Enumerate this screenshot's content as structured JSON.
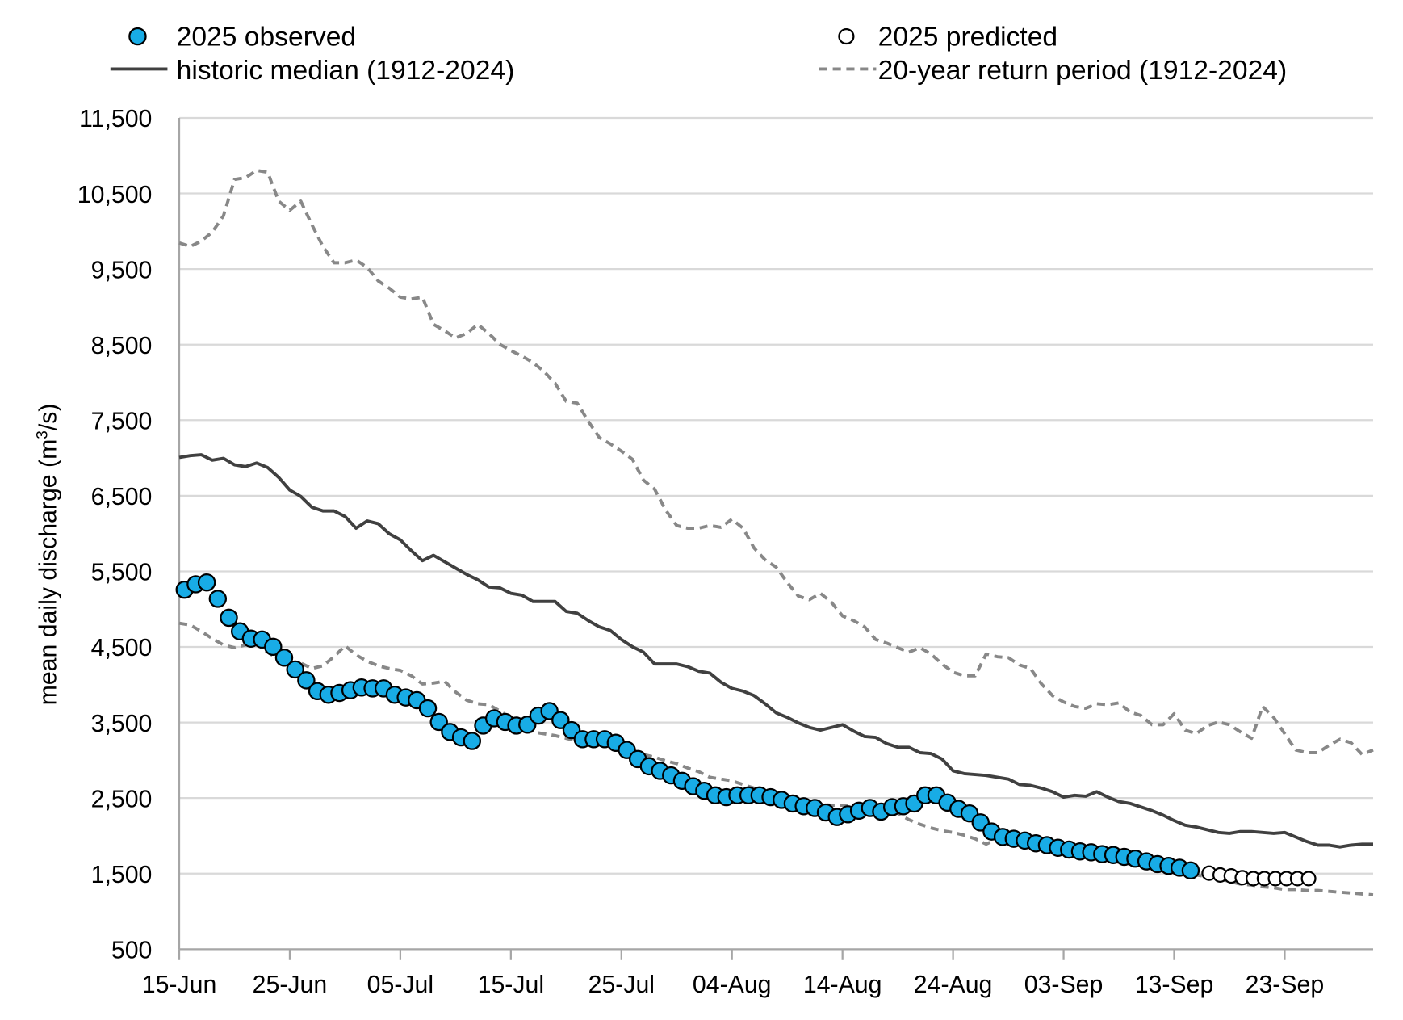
{
  "chart_data": {
    "type": "line",
    "title": "",
    "xlabel": "",
    "ylabel": "mean daily discharge (m³/s)",
    "ylabel_parts": {
      "pre": "mean daily discharge (m",
      "sup": "3",
      "post": "/s)"
    },
    "ylim": [
      500,
      11500
    ],
    "yticks": [
      500,
      1500,
      2500,
      3500,
      4500,
      5500,
      6500,
      7500,
      8500,
      9500,
      10500,
      11500
    ],
    "ytick_labels": [
      "500",
      "1,500",
      "2,500",
      "3,500",
      "4,500",
      "5,500",
      "6,500",
      "7,500",
      "8,500",
      "9,500",
      "10,500",
      "11,500"
    ],
    "x_range": [
      "15-Jun",
      "01-Oct"
    ],
    "xtick_labels": [
      "15-Jun",
      "25-Jun",
      "05-Jul",
      "15-Jul",
      "25-Jul",
      "04-Aug",
      "14-Aug",
      "24-Aug",
      "03-Sep",
      "13-Sep",
      "23-Sep"
    ],
    "grid": "horizontal",
    "legend_position": "top",
    "colors": {
      "observed": "#18ace6",
      "median": "#404040",
      "return_period": "#888888",
      "grid": "#d9d9d9",
      "axis": "#a6a6a6"
    },
    "series": [
      {
        "name": "2025 observed",
        "kind": "markers-filled",
        "start": "15-Jun",
        "values": [
          5257,
          5329,
          5353,
          5137,
          4886,
          4706,
          4610,
          4598,
          4502,
          4358,
          4202,
          4058,
          3915,
          3867,
          3891,
          3927,
          3963,
          3951,
          3951,
          3867,
          3831,
          3795,
          3687,
          3507,
          3375,
          3303,
          3255,
          3459,
          3555,
          3507,
          3459,
          3471,
          3591,
          3651,
          3531,
          3399,
          3279,
          3279,
          3279,
          3231,
          3136,
          3016,
          2920,
          2860,
          2800,
          2728,
          2656,
          2596,
          2536,
          2512,
          2536,
          2536,
          2536,
          2512,
          2476,
          2428,
          2392,
          2368,
          2309,
          2249,
          2285,
          2333,
          2368,
          2321,
          2380,
          2392,
          2428,
          2536,
          2536,
          2440,
          2357,
          2297,
          2177,
          2057,
          1985,
          1961,
          1937,
          1901,
          1877,
          1842,
          1818,
          1794,
          1782,
          1758,
          1746,
          1722,
          1698,
          1662,
          1626,
          1602,
          1578,
          1542
        ]
      },
      {
        "name": "2025 predicted",
        "kind": "markers-open",
        "start": "16-Sep",
        "values": [
          1506,
          1482,
          1470,
          1446,
          1434,
          1434,
          1434,
          1434,
          1434,
          1434
        ]
      },
      {
        "name": "historic median (1912-2024)",
        "kind": "solid-line",
        "start": "15-Jun",
        "values": [
          7006,
          7030,
          7042,
          6970,
          6994,
          6910,
          6886,
          6934,
          6874,
          6743,
          6575,
          6491,
          6347,
          6299,
          6299,
          6227,
          6071,
          6167,
          6131,
          5998,
          5916,
          5772,
          5640,
          5712,
          5628,
          5544,
          5460,
          5389,
          5293,
          5281,
          5209,
          5185,
          5101,
          5101,
          5101,
          4969,
          4945,
          4849,
          4766,
          4718,
          4598,
          4502,
          4430,
          4274,
          4274,
          4274,
          4238,
          4178,
          4154,
          4034,
          3951,
          3915,
          3855,
          3747,
          3627,
          3567,
          3495,
          3435,
          3399,
          3435,
          3471,
          3387,
          3315,
          3303,
          3220,
          3172,
          3172,
          3100,
          3088,
          3016,
          2860,
          2824,
          2812,
          2800,
          2776,
          2752,
          2680,
          2668,
          2632,
          2584,
          2512,
          2536,
          2524,
          2584,
          2512,
          2453,
          2429,
          2381,
          2333,
          2273,
          2201,
          2141,
          2117,
          2081,
          2045,
          2033,
          2057,
          2057,
          2045,
          2033,
          2045,
          1985,
          1925,
          1877,
          1877,
          1853,
          1877,
          1889,
          1889
        ]
      },
      {
        "name": "20-year return period (1912-2024)",
        "kind": "dashed-line",
        "start": "15-Jun",
        "values": [
          9846,
          9798,
          9870,
          9990,
          10206,
          10685,
          10709,
          10805,
          10781,
          10398,
          10278,
          10398,
          10086,
          9798,
          9583,
          9583,
          9619,
          9523,
          9343,
          9247,
          9127,
          9103,
          9127,
          8768,
          8684,
          8588,
          8648,
          8768,
          8648,
          8504,
          8420,
          8348,
          8264,
          8145,
          7989,
          7749,
          7725,
          7486,
          7270,
          7186,
          7090,
          6982,
          6707,
          6587,
          6311,
          6107,
          6071,
          6071,
          6107,
          6083,
          6191,
          6071,
          5808,
          5652,
          5556,
          5353,
          5173,
          5125,
          5209,
          5089,
          4909,
          4849,
          4766,
          4598,
          4550,
          4490,
          4430,
          4490,
          4406,
          4274,
          4166,
          4118,
          4118,
          4406,
          4370,
          4358,
          4262,
          4214,
          4010,
          3855,
          3771,
          3711,
          3687,
          3747,
          3735,
          3759,
          3639,
          3591,
          3471,
          3471,
          3615,
          3399,
          3351,
          3459,
          3507,
          3471,
          3375,
          3291,
          3711,
          3567,
          3351,
          3136,
          3100,
          3100,
          3196,
          3279,
          3231,
          3076,
          3136
        ]
      },
      {
        "name": "20-year return period (1912-2024)",
        "kind": "dashed-line",
        "start": "15-Jun",
        "values": [
          4814,
          4790,
          4706,
          4610,
          4526,
          4490,
          4526,
          4538,
          4430,
          4334,
          4250,
          4286,
          4214,
          4250,
          4370,
          4514,
          4394,
          4310,
          4250,
          4214,
          4190,
          4118,
          4010,
          4022,
          4046,
          3903,
          3795,
          3747,
          3735,
          3651,
          3555,
          3471,
          3375,
          3351,
          3327,
          3291,
          3255,
          3231,
          3231,
          3196,
          3172,
          3136,
          3076,
          3040,
          2992,
          2956,
          2896,
          2848,
          2776,
          2752,
          2728,
          2680,
          2632,
          2584,
          2548,
          2512,
          2465,
          2429,
          2417,
          2405,
          2405,
          2393,
          2405,
          2393,
          2333,
          2297,
          2213,
          2153,
          2105,
          2069,
          2045,
          2009,
          1961,
          1890,
          1961,
          1973,
          1949,
          1877,
          1842,
          1806,
          1770,
          1746,
          1722,
          1698,
          1674,
          1650,
          1626,
          1590,
          1542,
          1542,
          1530,
          1506,
          1482,
          1458,
          1434,
          1398,
          1362,
          1350,
          1326,
          1314,
          1290,
          1290,
          1278,
          1278,
          1266,
          1254,
          1243,
          1231,
          1219
        ]
      }
    ]
  },
  "legend": {
    "observed": "2025 observed",
    "predicted": "2025 predicted",
    "median": "historic median (1912-2024)",
    "return_period": "20-year return period (1912-2024)"
  }
}
